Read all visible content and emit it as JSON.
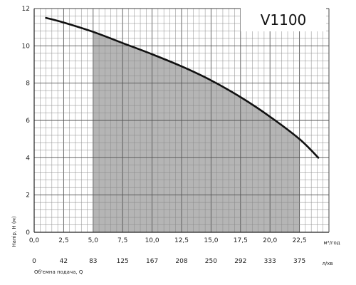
{
  "chart_data": {
    "type": "line",
    "title": "V1100",
    "ylabel": "Напір, Н (м)",
    "xlabel": "Об'ємна подача, Q",
    "x_unit": "м³/год",
    "x2_unit": "л/хв",
    "xlim": [
      0,
      25
    ],
    "ylim": [
      0,
      12
    ],
    "x_ticks": [
      "0,0",
      "2,5",
      "5,0",
      "7,5",
      "10,0",
      "12,5",
      "15,0",
      "17,5",
      "20,0",
      "22,5"
    ],
    "x2_ticks": [
      "0",
      "42",
      "83",
      "125",
      "167",
      "208",
      "250",
      "292",
      "333",
      "375"
    ],
    "y_ticks": [
      "0",
      "2",
      "4",
      "6",
      "8",
      "10",
      "12"
    ],
    "grid": true,
    "shaded_range": [
      5.0,
      22.5
    ],
    "series": [
      {
        "x": [
          1.0,
          2.5,
          5.0,
          7.5,
          10.0,
          12.5,
          15.0,
          17.5,
          20.0,
          22.5,
          24.1
        ],
        "y": [
          11.5,
          11.25,
          10.75,
          10.15,
          9.55,
          8.9,
          8.15,
          7.25,
          6.2,
          5.0,
          4.0
        ]
      }
    ]
  }
}
